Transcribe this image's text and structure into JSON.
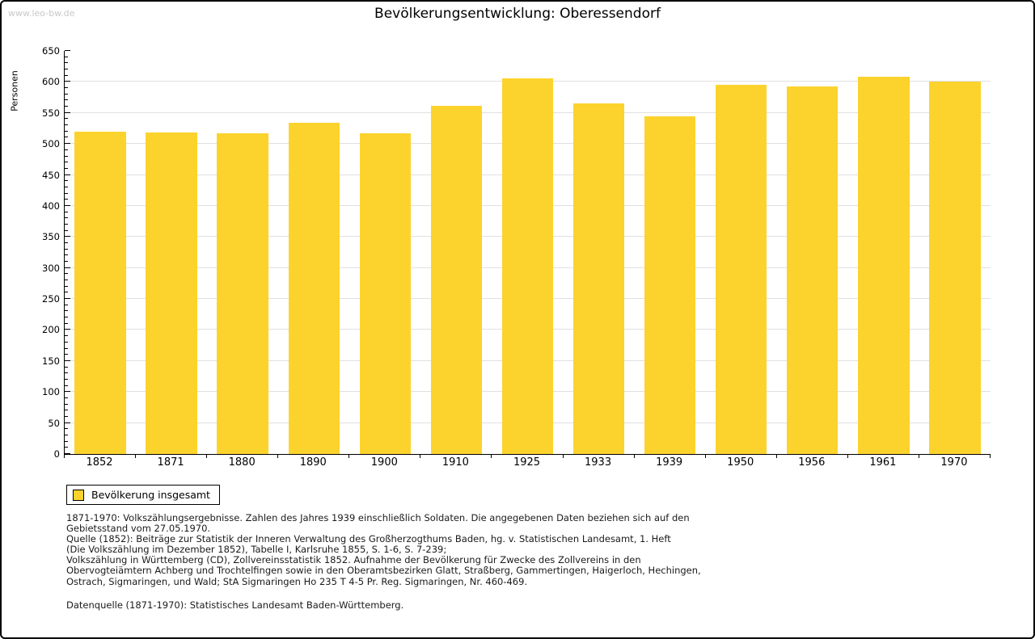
{
  "page": {
    "watermark": "www.leo-bw.de",
    "title": "Bevölkerungsentwicklung: Oberessendorf"
  },
  "chart_data": {
    "type": "bar",
    "title": "Bevölkerungsentwicklung: Oberessendorf",
    "xlabel": "",
    "ylabel": "Personen",
    "categories": [
      "1852",
      "1871",
      "1880",
      "1890",
      "1900",
      "1910",
      "1925",
      "1933",
      "1939",
      "1950",
      "1956",
      "1961",
      "1970"
    ],
    "series": [
      {
        "name": "Bevölkerung insgesamt",
        "values": [
          520,
          518,
          517,
          534,
          517,
          561,
          606,
          565,
          545,
          595,
          593,
          608,
          600
        ]
      }
    ],
    "ylim": [
      0,
      650
    ],
    "y_major_step": 50,
    "y_minor_step": 10,
    "grid": "horizontal",
    "legend_position": "bottom-left",
    "bar_color": "#FCD32D",
    "grid_color": "#E0E0E0",
    "axis_color": "#000000"
  },
  "legend": {
    "items": [
      {
        "label": "Bevölkerung insgesamt",
        "color": "#FCD32D"
      }
    ]
  },
  "footer": {
    "lines": [
      "1871-1970: Volkszählungsergebnisse. Zahlen des Jahres 1939 einschließlich Soldaten. Die angegebenen Daten beziehen sich auf den",
      "Gebietsstand vom 27.05.1970.",
      "Quelle (1852): Beiträge zur Statistik der Inneren Verwaltung des Großherzogthums Baden, hg. v. Statistischen Landesamt, 1. Heft",
      "(Die Volkszählung im Dezember 1852), Tabelle I, Karlsruhe 1855, S. 1-6, S. 7-239;",
      "Volkszählung in Württemberg (CD), Zollvereinsstatistik 1852. Aufnahme der Bevölkerung für Zwecke des Zollvereins in den",
      "Obervogteiämtern Achberg und Trochtelfingen sowie in den Oberamtsbezirken Glatt, Straßberg, Gammertingen, Haigerloch, Hechingen,",
      "Ostrach, Sigmaringen, und Wald; StA Sigmaringen Ho 235 T 4-5 Pr. Reg. Sigmaringen, Nr. 460-469."
    ],
    "datasource": "Datenquelle (1871-1970): Statistisches Landesamt Baden-Württemberg."
  }
}
